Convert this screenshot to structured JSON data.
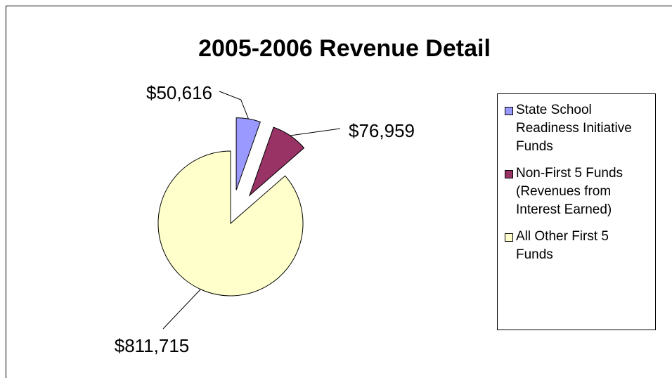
{
  "chart_data": {
    "type": "pie",
    "title": "2005-2006 Revenue Detail",
    "categories": [
      "State School Readiness Initiative Funds",
      "Non-First 5 Funds (Revenues from Interest Earned)",
      "All Other First 5 Funds"
    ],
    "values": [
      50616,
      76959,
      811715
    ],
    "value_labels": [
      "$50,616",
      "$76,959",
      "$811,715"
    ],
    "colors": [
      "#9999ff",
      "#993366",
      "#ffffcc"
    ],
    "legend": "right"
  }
}
